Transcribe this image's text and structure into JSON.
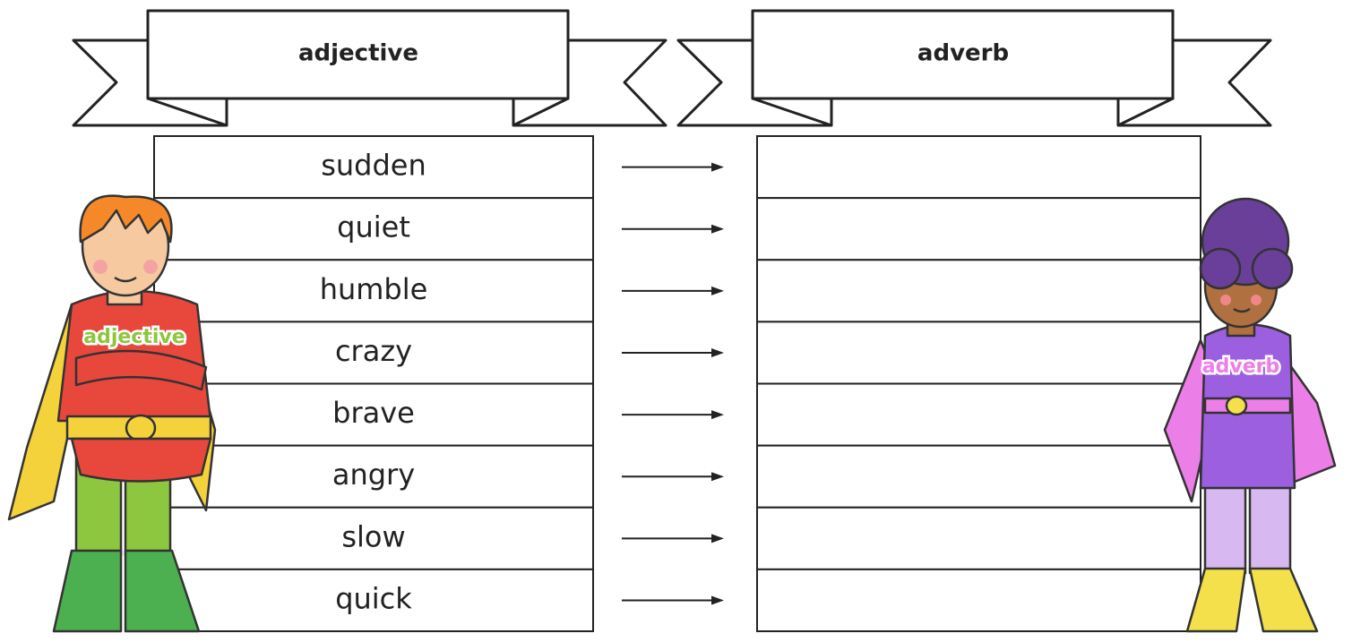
{
  "headers": {
    "left": "adjective",
    "right": "adverb"
  },
  "rows": [
    "sudden",
    "quiet",
    "humble",
    "crazy",
    "brave",
    "angry",
    "slow",
    "quick"
  ],
  "figures": {
    "left": {
      "label": "adjective"
    },
    "right": {
      "label": "adverb"
    }
  }
}
